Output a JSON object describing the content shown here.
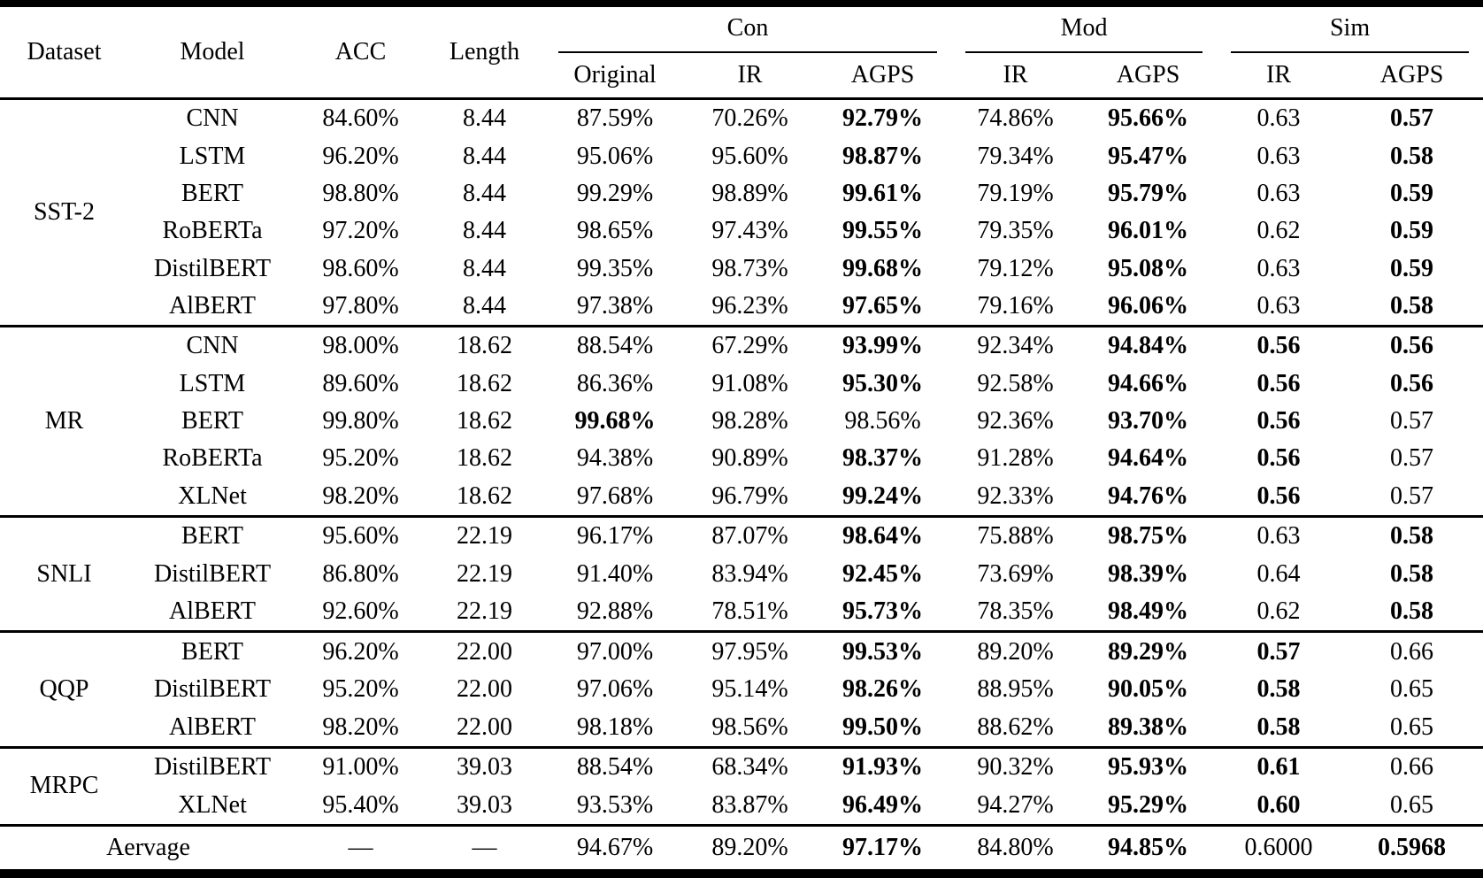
{
  "table": {
    "headers": {
      "dataset": "Dataset",
      "model": "Model",
      "acc": "ACC",
      "length": "Length"
    },
    "groups": [
      {
        "label": "Con",
        "cols": [
          "Original",
          "IR",
          "AGPS"
        ]
      },
      {
        "label": "Mod",
        "cols": [
          "IR",
          "AGPS"
        ]
      },
      {
        "label": "Sim",
        "cols": [
          "IR",
          "AGPS"
        ]
      }
    ],
    "blocks": [
      {
        "dataset": "SST-2",
        "rows": [
          {
            "model": "CNN",
            "acc": "84.60%",
            "length": "8.44",
            "cells": [
              "87.59%",
              "70.26%",
              "92.79%",
              "74.86%",
              "95.66%",
              "0.63",
              "0.57"
            ],
            "bold": [
              false,
              false,
              true,
              false,
              true,
              false,
              true
            ]
          },
          {
            "model": "LSTM",
            "acc": "96.20%",
            "length": "8.44",
            "cells": [
              "95.06%",
              "95.60%",
              "98.87%",
              "79.34%",
              "95.47%",
              "0.63",
              "0.58"
            ],
            "bold": [
              false,
              false,
              true,
              false,
              true,
              false,
              true
            ]
          },
          {
            "model": "BERT",
            "acc": "98.80%",
            "length": "8.44",
            "cells": [
              "99.29%",
              "98.89%",
              "99.61%",
              "79.19%",
              "95.79%",
              "0.63",
              "0.59"
            ],
            "bold": [
              false,
              false,
              true,
              false,
              true,
              false,
              true
            ]
          },
          {
            "model": "RoBERTa",
            "acc": "97.20%",
            "length": "8.44",
            "cells": [
              "98.65%",
              "97.43%",
              "99.55%",
              "79.35%",
              "96.01%",
              "0.62",
              "0.59"
            ],
            "bold": [
              false,
              false,
              true,
              false,
              true,
              false,
              true
            ]
          },
          {
            "model": "DistilBERT",
            "acc": "98.60%",
            "length": "8.44",
            "cells": [
              "99.35%",
              "98.73%",
              "99.68%",
              "79.12%",
              "95.08%",
              "0.63",
              "0.59"
            ],
            "bold": [
              false,
              false,
              true,
              false,
              true,
              false,
              true
            ]
          },
          {
            "model": "AlBERT",
            "acc": "97.80%",
            "length": "8.44",
            "cells": [
              "97.38%",
              "96.23%",
              "97.65%",
              "79.16%",
              "96.06%",
              "0.63",
              "0.58"
            ],
            "bold": [
              false,
              false,
              true,
              false,
              true,
              false,
              true
            ]
          }
        ]
      },
      {
        "dataset": "MR",
        "rows": [
          {
            "model": "CNN",
            "acc": "98.00%",
            "length": "18.62",
            "cells": [
              "88.54%",
              "67.29%",
              "93.99%",
              "92.34%",
              "94.84%",
              "0.56",
              "0.56"
            ],
            "bold": [
              false,
              false,
              true,
              false,
              true,
              true,
              true
            ]
          },
          {
            "model": "LSTM",
            "acc": "89.60%",
            "length": "18.62",
            "cells": [
              "86.36%",
              "91.08%",
              "95.30%",
              "92.58%",
              "94.66%",
              "0.56",
              "0.56"
            ],
            "bold": [
              false,
              false,
              true,
              false,
              true,
              true,
              true
            ]
          },
          {
            "model": "BERT",
            "acc": "99.80%",
            "length": "18.62",
            "cells": [
              "99.68%",
              "98.28%",
              "98.56%",
              "92.36%",
              "93.70%",
              "0.56",
              "0.57"
            ],
            "bold": [
              true,
              false,
              false,
              false,
              true,
              true,
              false
            ]
          },
          {
            "model": "RoBERTa",
            "acc": "95.20%",
            "length": "18.62",
            "cells": [
              "94.38%",
              "90.89%",
              "98.37%",
              "91.28%",
              "94.64%",
              "0.56",
              "0.57"
            ],
            "bold": [
              false,
              false,
              true,
              false,
              true,
              true,
              false
            ]
          },
          {
            "model": "XLNet",
            "acc": "98.20%",
            "length": "18.62",
            "cells": [
              "97.68%",
              "96.79%",
              "99.24%",
              "92.33%",
              "94.76%",
              "0.56",
              "0.57"
            ],
            "bold": [
              false,
              false,
              true,
              false,
              true,
              true,
              false
            ]
          }
        ]
      },
      {
        "dataset": "SNLI",
        "rows": [
          {
            "model": "BERT",
            "acc": "95.60%",
            "length": "22.19",
            "cells": [
              "96.17%",
              "87.07%",
              "98.64%",
              "75.88%",
              "98.75%",
              "0.63",
              "0.58"
            ],
            "bold": [
              false,
              false,
              true,
              false,
              true,
              false,
              true
            ]
          },
          {
            "model": "DistilBERT",
            "acc": "86.80%",
            "length": "22.19",
            "cells": [
              "91.40%",
              "83.94%",
              "92.45%",
              "73.69%",
              "98.39%",
              "0.64",
              "0.58"
            ],
            "bold": [
              false,
              false,
              true,
              false,
              true,
              false,
              true
            ]
          },
          {
            "model": "AlBERT",
            "acc": "92.60%",
            "length": "22.19",
            "cells": [
              "92.88%",
              "78.51%",
              "95.73%",
              "78.35%",
              "98.49%",
              "0.62",
              "0.58"
            ],
            "bold": [
              false,
              false,
              true,
              false,
              true,
              false,
              true
            ]
          }
        ]
      },
      {
        "dataset": "QQP",
        "rows": [
          {
            "model": "BERT",
            "acc": "96.20%",
            "length": "22.00",
            "cells": [
              "97.00%",
              "97.95%",
              "99.53%",
              "89.20%",
              "89.29%",
              "0.57",
              "0.66"
            ],
            "bold": [
              false,
              false,
              true,
              false,
              true,
              true,
              false
            ]
          },
          {
            "model": "DistilBERT",
            "acc": "95.20%",
            "length": "22.00",
            "cells": [
              "97.06%",
              "95.14%",
              "98.26%",
              "88.95%",
              "90.05%",
              "0.58",
              "0.65"
            ],
            "bold": [
              false,
              false,
              true,
              false,
              true,
              true,
              false
            ]
          },
          {
            "model": "AlBERT",
            "acc": "98.20%",
            "length": "22.00",
            "cells": [
              "98.18%",
              "98.56%",
              "99.50%",
              "88.62%",
              "89.38%",
              "0.58",
              "0.65"
            ],
            "bold": [
              false,
              false,
              true,
              false,
              true,
              true,
              false
            ]
          }
        ]
      },
      {
        "dataset": "MRPC",
        "rows": [
          {
            "model": "DistilBERT",
            "acc": "91.00%",
            "length": "39.03",
            "cells": [
              "88.54%",
              "68.34%",
              "91.93%",
              "90.32%",
              "95.93%",
              "0.61",
              "0.66"
            ],
            "bold": [
              false,
              false,
              true,
              false,
              true,
              true,
              false
            ]
          },
          {
            "model": "XLNet",
            "acc": "95.40%",
            "length": "39.03",
            "cells": [
              "93.53%",
              "83.87%",
              "96.49%",
              "94.27%",
              "95.29%",
              "0.60",
              "0.65"
            ],
            "bold": [
              false,
              false,
              true,
              false,
              true,
              true,
              false
            ]
          }
        ]
      }
    ],
    "footer": {
      "label": "Aervage",
      "acc": "—",
      "length": "—",
      "cells": [
        "94.67%",
        "89.20%",
        "97.17%",
        "84.80%",
        "94.85%",
        "0.6000",
        "0.5968"
      ],
      "bold": [
        false,
        false,
        true,
        false,
        true,
        false,
        true
      ]
    }
  }
}
